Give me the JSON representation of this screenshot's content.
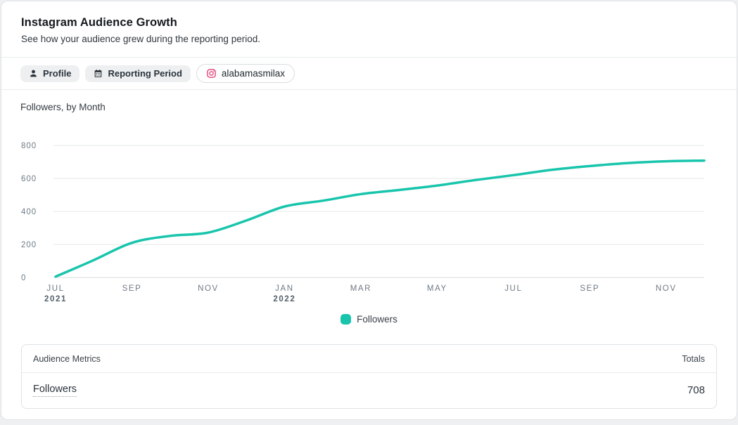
{
  "header": {
    "title": "Instagram Audience Growth",
    "subtitle": "See how your audience grew during the reporting period."
  },
  "filter_bar": {
    "chips": [
      {
        "label": "Profile",
        "icon": "person-icon"
      },
      {
        "label": "Reporting Period",
        "icon": "calendar-icon"
      },
      {
        "label": "alabamasmilax",
        "icon": "instagram-icon",
        "icon_color": "#e1306c"
      }
    ]
  },
  "chart_data": {
    "type": "line",
    "title": "Followers, by Month",
    "x": [
      "Jul 2021",
      "Aug 2021",
      "Sep 2021",
      "Oct 2021",
      "Nov 2021",
      "Dec 2021",
      "Jan 2022",
      "Feb 2022",
      "Mar 2022",
      "Apr 2022",
      "May 2022",
      "Jun 2022",
      "Jul 2022",
      "Aug 2022",
      "Sep 2022",
      "Oct 2022",
      "Nov 2022",
      "Dec 2022"
    ],
    "series": [
      {
        "name": "Followers",
        "color": "#18c5ac",
        "values": [
          5,
          105,
          210,
          252,
          272,
          345,
          430,
          465,
          505,
          530,
          557,
          590,
          620,
          652,
          675,
          693,
          704,
          708
        ]
      }
    ],
    "ylim": [
      0,
      800
    ],
    "yticks": [
      0,
      200,
      400,
      600,
      800
    ],
    "xticks": [
      {
        "i": 0,
        "label": "JUL",
        "year": "2021"
      },
      {
        "i": 2,
        "label": "SEP"
      },
      {
        "i": 4,
        "label": "NOV"
      },
      {
        "i": 6,
        "label": "JAN",
        "year": "2022"
      },
      {
        "i": 8,
        "label": "MAR"
      },
      {
        "i": 10,
        "label": "MAY"
      },
      {
        "i": 12,
        "label": "JUL"
      },
      {
        "i": 14,
        "label": "SEP"
      },
      {
        "i": 16,
        "label": "NOV"
      }
    ],
    "grid": true,
    "legend": {
      "position": "bottom",
      "label": "Followers"
    }
  },
  "metrics_table": {
    "header_left": "Audience Metrics",
    "header_right": "Totals",
    "rows": [
      {
        "name": "Followers",
        "total": "708"
      }
    ]
  }
}
